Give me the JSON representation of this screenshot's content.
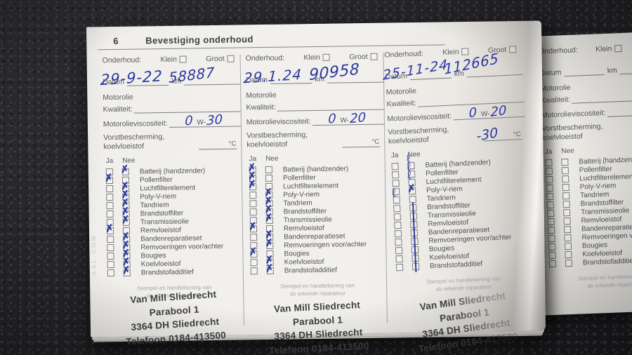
{
  "page": {
    "number": "6",
    "title": "Bevestiging onderhoud"
  },
  "photo": {
    "bleed_text": "AAL.COM"
  },
  "form": {
    "onderhoud_label": "Onderhoud:",
    "klein_label": "Klein",
    "groot_label": "Groot",
    "datum_label": "Datum",
    "km_label": "km",
    "motorolie_label": "Motorolie",
    "kwaliteit_label": "Kwaliteit:",
    "viscositeit_label": "Motorolieviscositeit:",
    "viscositeit_printed": "W-",
    "vorst_line1": "Vorstbescherming,",
    "vorst_line2": "koelvloeistof",
    "celsius_label": "°C",
    "ja_label": "Ja",
    "nee_label": "Nee",
    "items": [
      "Batterij (handzender)",
      "Pollenfilter",
      "Luchtfilterelement",
      "Poly-V-riem",
      "Tandriem",
      "Brandstoffilter",
      "Transmissieolie",
      "Remvloeistof",
      "Bandenreparatieset",
      "Remvoeringen voor/achter",
      "Bougies",
      "Koelvloeistof",
      "Brandstofadditief"
    ],
    "stempel_line1": "Stempel en handtekening van",
    "stempel_line2": "de erkende reparateur"
  },
  "stamp": {
    "lines": [
      "Van Mill Sliedrecht",
      "Parabool 1",
      "3364 DH  Sliedrecht",
      "Telefoon 0184-413500"
    ]
  },
  "entries": [
    {
      "datum": "29-9-22",
      "km": "58887",
      "visc_prefix": "0",
      "visc_suffix": "30",
      "vorst": "",
      "checks": [
        "nee",
        "ja",
        "nee",
        "nee",
        "nee",
        "nee",
        "nee",
        "ja",
        "nee",
        "nee",
        "nee",
        "nee",
        "nee"
      ],
      "mark_styles": [
        "x",
        "x",
        "x",
        "x",
        "x",
        "x",
        "x",
        "x",
        "x",
        "x",
        "x",
        "x",
        "x"
      ],
      "stamp": true,
      "stamp_faded": false,
      "partial": false
    },
    {
      "datum": "29.1.24",
      "km": "90958",
      "visc_prefix": "0",
      "visc_suffix": "20",
      "vorst": "",
      "checks": [
        "ja",
        "ja",
        "ja",
        "nee",
        "nee",
        "nee",
        "nee",
        "ja",
        "nee",
        "nee",
        "ja",
        "nee",
        "nee"
      ],
      "mark_styles": [
        "x",
        "x",
        "x",
        "x",
        "x",
        "x",
        "x",
        "x",
        "x",
        "x",
        "x",
        "x",
        "x"
      ],
      "stamp": true,
      "stamp_faded": false,
      "partial": false
    },
    {
      "datum": "25-11-24",
      "km": "112665",
      "visc_prefix": "0",
      "visc_suffix": "20",
      "vorst": "-30",
      "checks": [
        "nee",
        "nee",
        "nee",
        "nee",
        "ja",
        "nee",
        "nee",
        "nee",
        "nee",
        "nee",
        "nee",
        "nee",
        "nee"
      ],
      "mark_styles": [
        "loop",
        "loop",
        "loop",
        "x",
        "loop",
        "bar",
        "bar",
        "bar",
        "bar",
        "bar",
        "bar",
        "bar",
        "bar"
      ],
      "stamp": true,
      "stamp_faded": true,
      "partial": false
    },
    {
      "datum": "",
      "km": "",
      "visc_prefix": "",
      "visc_suffix": "",
      "vorst": "",
      "checks": [
        "",
        "",
        "",
        "",
        "",
        "",
        "",
        "",
        "",
        "",
        "",
        "",
        ""
      ],
      "mark_styles": [],
      "stamp": false,
      "stamp_faded": false,
      "partial": true
    }
  ],
  "colors": {
    "paper": "#f1efeb",
    "carpet": "#28282b",
    "ink_blue": "#2c3aa0",
    "print_gray": "#56575b",
    "stamp_gray": "#3e3f44"
  }
}
